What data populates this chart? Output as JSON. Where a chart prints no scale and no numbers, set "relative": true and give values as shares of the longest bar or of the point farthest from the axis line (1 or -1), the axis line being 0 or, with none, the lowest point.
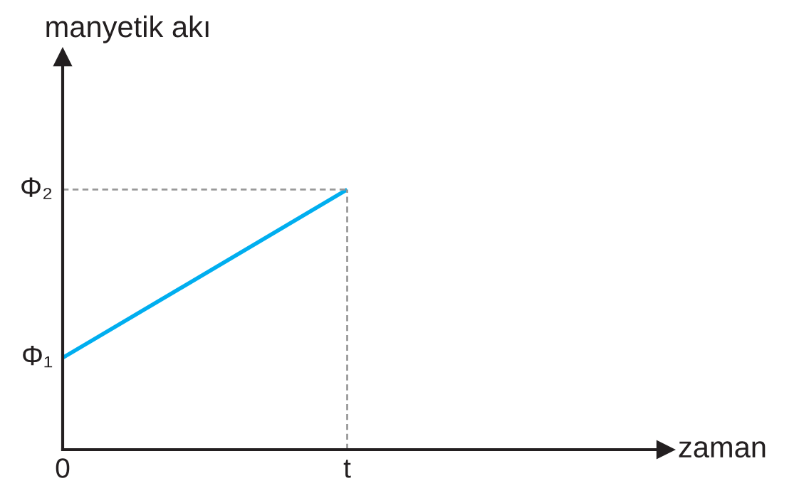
{
  "chart_data": {
    "type": "line",
    "ylabel": "manyetik akı",
    "xlabel": "zaman",
    "relative": true,
    "categories": [
      "0",
      "t"
    ],
    "series": [
      {
        "color": "#00aeef",
        "values": [
          0.353,
          1
        ]
      }
    ],
    "annotations": [
      {
        "text": "Φ₁",
        "x": "0",
        "y": 0.353
      },
      {
        "text": "Φ₂",
        "x": "0",
        "y": 1
      }
    ],
    "ref_lines": [
      {
        "axis": "x",
        "value": "t",
        "color": "#999999",
        "line_style": "dashed"
      },
      {
        "axis": "y",
        "value": 1,
        "color": "#999999",
        "line_style": "dashed"
      }
    ],
    "grid": false,
    "legend": false,
    "marker": "none",
    "line_style": "solid"
  }
}
